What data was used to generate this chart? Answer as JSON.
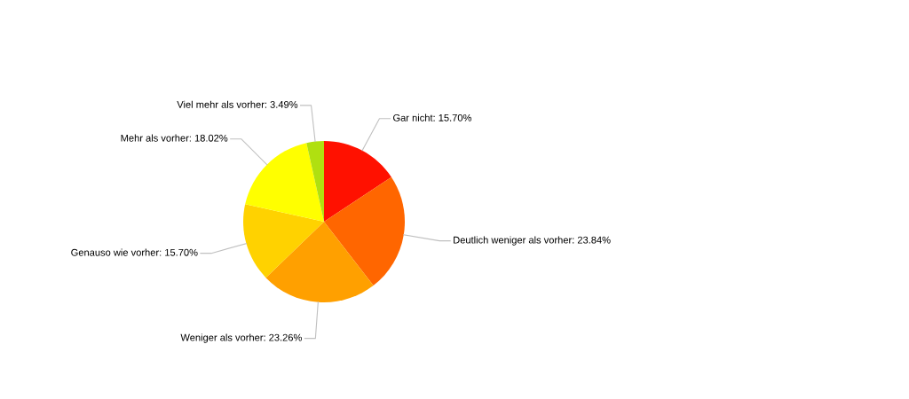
{
  "chart_data": {
    "type": "pie",
    "categories": [
      "Gar nicht",
      "Deutlich weniger als vorher",
      "Weniger als vorher",
      "Genauso wie vorher",
      "Mehr als vorher",
      "Viel mehr als vorher"
    ],
    "values": [
      15.7,
      23.84,
      23.26,
      15.7,
      18.02,
      3.49
    ],
    "value_labels": [
      "15.70%",
      "23.84%",
      "23.26%",
      "15.70%",
      "18.02%",
      "3.49%"
    ],
    "colors": [
      "#ff1100",
      "#ff6600",
      "#ffa000",
      "#ffd200",
      "#ffff00",
      "#b0e010"
    ],
    "legend": false
  }
}
